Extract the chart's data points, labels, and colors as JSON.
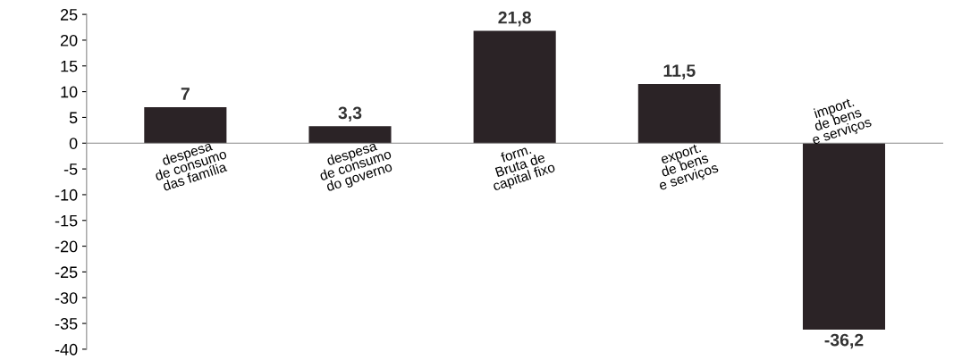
{
  "chart_data": {
    "type": "bar",
    "categories": [
      "despesa\nde consumo\ndas família",
      "despesa\nde consumo\ndo governo",
      "form.\nBruta de\ncapital fixo",
      "export.\nde bens\ne serviços",
      "import.\nde bens\ne serviços"
    ],
    "values": [
      7,
      3.3,
      21.8,
      11.5,
      -36.2
    ],
    "value_labels": [
      "7",
      "3,3",
      "21,8",
      "11,5",
      "-36,2"
    ],
    "color": "#2b2326",
    "ylim": [
      -40,
      25
    ],
    "yticks": [
      25,
      20,
      15,
      10,
      5,
      0,
      -5,
      -10,
      -15,
      -20,
      -25,
      -30,
      -35,
      -40
    ],
    "grid": false
  }
}
